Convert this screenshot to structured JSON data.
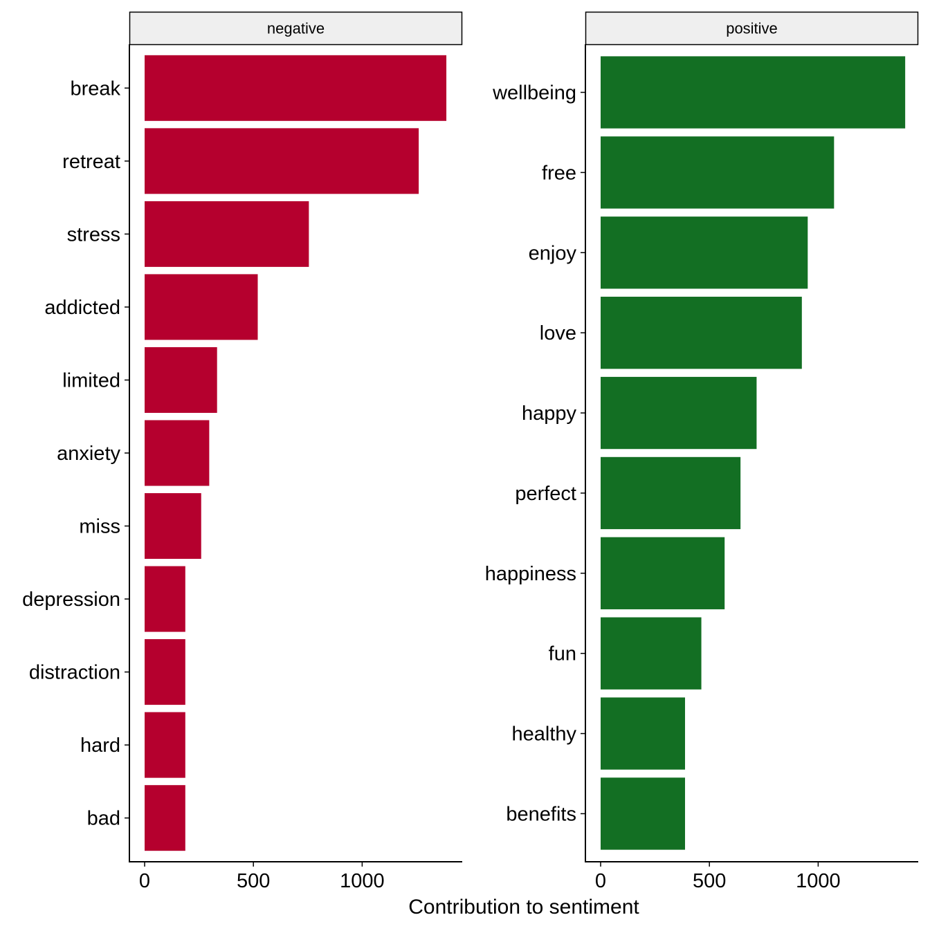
{
  "colors": {
    "negative": "#b5002e",
    "positive": "#136f23",
    "strip_fill": "#efefef",
    "axis": "#000000",
    "text": "#000000"
  },
  "chart_data": {
    "type": "bar",
    "orientation": "horizontal",
    "xlabel": "Contribution to sentiment",
    "ylabel": "",
    "xticks": [
      0,
      500,
      1000
    ],
    "grid": false,
    "legend": "none",
    "panels": [
      {
        "strip_label": "negative",
        "color_key": "negative",
        "xlim": [
          -70,
          1460
        ],
        "categories": [
          "break",
          "retreat",
          "stress",
          "addicted",
          "limited",
          "anxiety",
          "miss",
          "depression",
          "distraction",
          "hard",
          "bad"
        ],
        "values": [
          1387,
          1260,
          755,
          520,
          333,
          297,
          260,
          187,
          187,
          187,
          187
        ]
      },
      {
        "strip_label": "positive",
        "color_key": "positive",
        "xlim": [
          -70,
          1460
        ],
        "categories": [
          "wellbeing",
          "free",
          "enjoy",
          "love",
          "happy",
          "perfect",
          "happiness",
          "fun",
          "healthy",
          "benefits"
        ],
        "values": [
          1400,
          1073,
          952,
          925,
          717,
          643,
          570,
          463,
          388,
          388
        ]
      }
    ]
  }
}
